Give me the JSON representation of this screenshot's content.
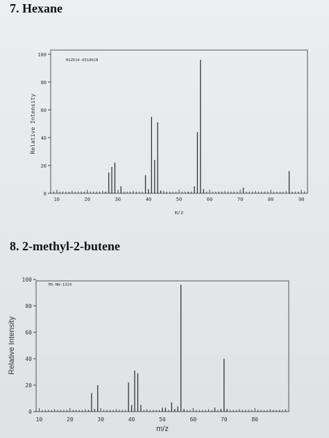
{
  "headings": [
    "7. Hexane",
    "8. 2-methyl-2-butene"
  ],
  "chart_data": [
    {
      "type": "bar",
      "title": "7. Hexane",
      "id_label": "HSZ014-05106CN",
      "xlabel": "m/z",
      "ylabel": "Relative Intensity",
      "xlim": [
        8,
        92
      ],
      "ylim": [
        0,
        100
      ],
      "x_ticks": [
        10,
        20,
        30,
        40,
        50,
        60,
        70,
        80,
        90
      ],
      "y_ticks": [
        0,
        20,
        40,
        60,
        80,
        100
      ],
      "grid": false,
      "x": [
        26,
        27,
        28,
        29,
        31,
        39,
        40,
        41,
        42,
        43,
        44,
        53,
        55,
        56,
        57,
        58,
        71,
        86
      ],
      "values": [
        1,
        15,
        19,
        22,
        5,
        13,
        3,
        55,
        24,
        51,
        2,
        1,
        5,
        44,
        96,
        3,
        4,
        16
      ]
    },
    {
      "type": "bar",
      "title": "8. 2-methyl-2-butene",
      "id_label": "MS-NW-1329",
      "xlabel": "m/z",
      "ylabel": "Relative Intensity",
      "xlim": [
        9,
        91
      ],
      "ylim": [
        0,
        100
      ],
      "x_ticks": [
        10,
        20,
        30,
        40,
        50,
        60,
        70,
        80
      ],
      "y_ticks": [
        0,
        20,
        40,
        60,
        80,
        100
      ],
      "grid": false,
      "x": [
        26,
        27,
        28,
        29,
        39,
        40,
        41,
        42,
        43,
        50,
        51,
        53,
        54,
        55,
        56,
        57,
        67,
        69,
        70,
        71
      ],
      "values": [
        1,
        14,
        2,
        20,
        22,
        5,
        31,
        29,
        5,
        3,
        3,
        7,
        2,
        4,
        96,
        2,
        3,
        2,
        40,
        2
      ]
    }
  ]
}
